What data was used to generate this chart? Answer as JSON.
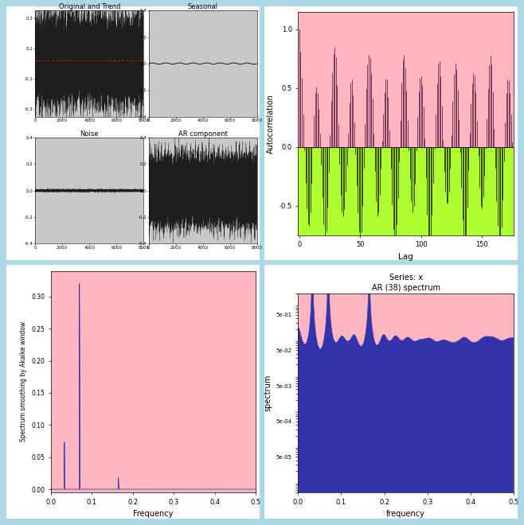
{
  "outer_bg": "#add8e6",
  "panel_bg_gray": "#c8c8c8",
  "panel_bg_pink": "#ffb6c1",
  "acf_pos_color": "#ffb6c1",
  "acf_neg_color": "#adff2f",
  "spec_fill_blue": "#3333aa",
  "title1": "Original and Trend",
  "title2": "Seasonal",
  "title3": "Noise",
  "title4": "AR component",
  "acf_ylabel": "Autocorrelation",
  "acf_xlabel": "Lag",
  "spec1_ylabel": "Spectrum smoothing by Akaike window",
  "spec1_xlabel": "Frequency",
  "spec2_title": "Series: x\nAR (38) spectrum",
  "spec2_ylabel": "spectrum",
  "spec2_xlabel": "frequency",
  "n_points": 8000,
  "freq1": 0.07,
  "freq2": 0.033,
  "freq3": 0.165,
  "white_panel_color": "#ffffff"
}
